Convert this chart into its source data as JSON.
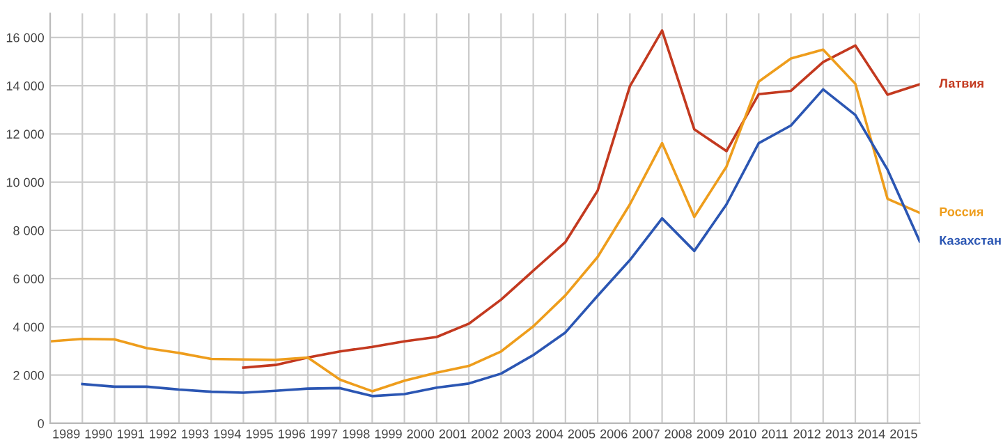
{
  "chart_data": {
    "type": "line",
    "x": [
      1988.5,
      1989.5,
      1990.5,
      1991.5,
      1992.5,
      1993.5,
      1994.5,
      1995.5,
      1996.5,
      1997.5,
      1998.5,
      1999.5,
      2000.5,
      2001.5,
      2002.5,
      2003.5,
      2004.5,
      2005.5,
      2006.5,
      2007.5,
      2008.5,
      2009.5,
      2010.5,
      2011.5,
      2012.5,
      2013.5,
      2014.5,
      2015.5
    ],
    "series": [
      {
        "name": "Латвия",
        "color": "#c3391f",
        "values": [
          null,
          null,
          null,
          null,
          null,
          null,
          2310,
          2420,
          2730,
          2980,
          3170,
          3400,
          3580,
          4130,
          5130,
          6330,
          7520,
          9650,
          13980,
          16290,
          12190,
          11290,
          13650,
          13790,
          14980,
          15670,
          13630,
          14060
        ]
      },
      {
        "name": "Россия",
        "color": "#ee9d1c",
        "values": [
          3400,
          3500,
          3480,
          3120,
          2920,
          2670,
          2650,
          2630,
          2730,
          1810,
          1330,
          1770,
          2100,
          2380,
          2980,
          4020,
          5310,
          6900,
          9080,
          11620,
          8560,
          10650,
          14170,
          15130,
          15500,
          14080,
          9310,
          8730
        ]
      },
      {
        "name": "Казахстан",
        "color": "#2b56b3",
        "values": [
          null,
          1630,
          1520,
          1520,
          1400,
          1310,
          1270,
          1350,
          1440,
          1460,
          1130,
          1210,
          1480,
          1650,
          2060,
          2830,
          3770,
          5290,
          6770,
          8500,
          7150,
          9080,
          11620,
          12350,
          13850,
          12790,
          10520,
          7540
        ]
      }
    ],
    "xlim": [
      1988.5,
      2015.5
    ],
    "xticks": [
      {
        "value": 1988.5,
        "label": null
      },
      {
        "value": 1989.5,
        "label": null
      },
      {
        "value": 1990.5,
        "label": null
      },
      {
        "value": 1991.5,
        "label": null
      },
      {
        "value": 1992.5,
        "label": null
      },
      {
        "value": 1993.5,
        "label": null
      },
      {
        "value": 1994.5,
        "label": null
      },
      {
        "value": 1995.5,
        "label": null
      },
      {
        "value": 1996.5,
        "label": null
      },
      {
        "value": 1997.5,
        "label": null
      },
      {
        "value": 1998.5,
        "label": null
      },
      {
        "value": 1999.5,
        "label": null
      },
      {
        "value": 2000.5,
        "label": null
      },
      {
        "value": 2001.5,
        "label": null
      },
      {
        "value": 2002.5,
        "label": null
      },
      {
        "value": 2003.5,
        "label": null
      },
      {
        "value": 2004.5,
        "label": null
      },
      {
        "value": 2005.5,
        "label": null
      },
      {
        "value": 2006.5,
        "label": null
      },
      {
        "value": 2007.5,
        "label": null
      },
      {
        "value": 2008.5,
        "label": null
      },
      {
        "value": 2009.5,
        "label": null
      },
      {
        "value": 2010.5,
        "label": null
      },
      {
        "value": 2011.5,
        "label": null
      },
      {
        "value": 2012.5,
        "label": null
      },
      {
        "value": 2013.5,
        "label": null
      },
      {
        "value": 2014.5,
        "label": null
      },
      {
        "value": 2015.5,
        "label": null
      },
      1989,
      1990,
      1991,
      1992,
      1993,
      1994,
      1995,
      1996,
      1997,
      1998,
      1999,
      2000,
      2001,
      2002,
      2003,
      2004,
      2005,
      2006,
      2007,
      2008,
      2009,
      2010,
      2011,
      2012,
      2013,
      2014,
      2015
    ],
    "ylim": [
      0,
      17000
    ],
    "yticks": [
      0,
      {
        "value": 2000,
        "label": "2 000"
      },
      {
        "value": 4000,
        "label": "4 000"
      },
      {
        "value": 6000,
        "label": "6 000"
      },
      {
        "value": 8000,
        "label": "8 000"
      },
      {
        "value": 10000,
        "label": "10 000"
      },
      {
        "value": 12000,
        "label": "12 000"
      },
      {
        "value": 14000,
        "label": "14 000"
      },
      {
        "value": 16000,
        "label": "16 000"
      }
    ],
    "grid": true,
    "legend": false,
    "marker": "none",
    "line_style": "solid"
  }
}
